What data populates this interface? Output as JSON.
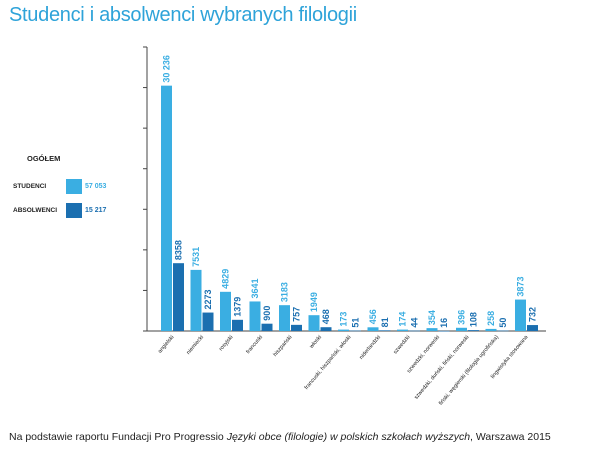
{
  "title": "Studenci i absolwenci wybranych filologii",
  "legend": {
    "heading": "OGÓŁEM",
    "items": [
      {
        "label": "STUDENCI",
        "value": "57 053",
        "color": "#3aaee2"
      },
      {
        "label": "ABSOLWENCI",
        "value": "15 217",
        "color": "#1b6fb0"
      }
    ]
  },
  "source": {
    "prefix": "Na podstawie raportu Fundacji Pro Progressio ",
    "italic": "Języki obce (filologie) w polskich szkołach wyższych",
    "suffix": ", Warszawa 2015"
  },
  "chart_data": {
    "type": "bar",
    "categories": [
      "angielski",
      "niemiecki",
      "rosyjski",
      "francuski",
      "hiszpański",
      "włoski",
      "francuski, hiszpański, włoski",
      "niderlandzki",
      "szwedzki",
      "szwedzki, norweski",
      "szwedzki, duński, fiński, norweski",
      "fiński, węgierski (filologia ugrofińska)",
      "lingwistyka stosowana"
    ],
    "series": [
      {
        "name": "STUDENCI",
        "color": "#3aaee2",
        "values": [
          30236,
          7531,
          4829,
          3641,
          3183,
          1949,
          173,
          456,
          174,
          354,
          396,
          258,
          3873
        ],
        "labels": [
          "30 236",
          "7531",
          "4829",
          "3641",
          "3183",
          "1949",
          "173",
          "456",
          "174",
          "354",
          "396",
          "258",
          "3873"
        ]
      },
      {
        "name": "ABSOLWENCI",
        "color": "#1b6fb0",
        "values": [
          8358,
          2273,
          1379,
          900,
          757,
          468,
          51,
          81,
          44,
          16,
          108,
          50,
          732
        ],
        "labels": [
          "8358",
          "2273",
          "1379",
          "900",
          "757",
          "468",
          "51",
          "81",
          "44",
          "16",
          "108",
          "50",
          "732"
        ]
      }
    ],
    "ylim": [
      0,
      35000
    ],
    "yticks_step": 5000,
    "grid": false,
    "legend_position": "left"
  }
}
